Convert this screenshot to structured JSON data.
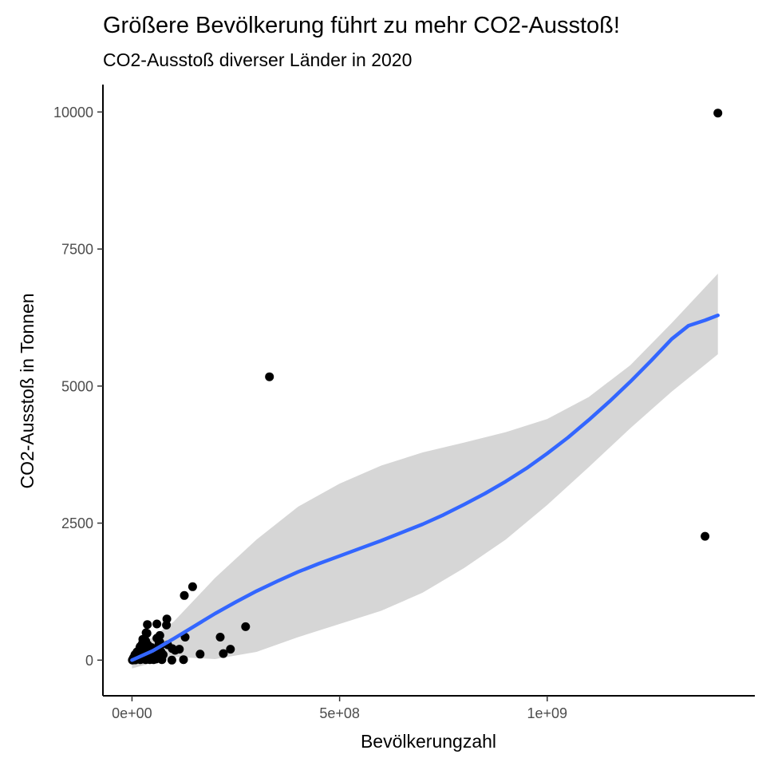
{
  "chart_data": {
    "type": "scatter",
    "title": "Größere Bevölkerung führt zu mehr CO2-Ausstoß!",
    "subtitle": "CO2-Ausstoß diverser Länder in 2020",
    "xlabel": "Bevölkerungzahl",
    "ylabel": "CO2-Ausstoß in Tonnen",
    "xlim": [
      -70000000,
      1500000000
    ],
    "ylim": [
      -650000,
      10500000
    ],
    "x_ticks": [
      0,
      500000000,
      1000000000
    ],
    "x_tick_labels": [
      "0e+00",
      "5e+08",
      "1e+09"
    ],
    "y_ticks": [
      0,
      2500000,
      5000000,
      7500000,
      10000000
    ],
    "y_tick_labels": [
      "0",
      "2500",
      "5000",
      "7500",
      "10000"
    ],
    "grid": false,
    "legend": "none",
    "colors": {
      "points": "#000000",
      "smooth_line": "#3366FF",
      "ribbon": "#d6d6d6"
    },
    "series": [
      {
        "type": "scatter",
        "points": [
          [
            1411000000,
            9980000
          ],
          [
            1380000000,
            2260000
          ],
          [
            331000000,
            5170000
          ],
          [
            146000000,
            1340000
          ],
          [
            126000000,
            1180000
          ],
          [
            273500000,
            610000
          ],
          [
            84000000,
            750000
          ],
          [
            83000000,
            640000
          ],
          [
            60000000,
            660000
          ],
          [
            37000000,
            650000
          ],
          [
            212500000,
            420000
          ],
          [
            220000000,
            120000
          ],
          [
            237000000,
            200000
          ],
          [
            164000000,
            110000
          ],
          [
            128000000,
            420000
          ],
          [
            114000000,
            200000
          ],
          [
            124000000,
            10000
          ],
          [
            96000000,
            0
          ],
          [
            104000000,
            180000
          ],
          [
            97000000,
            210000
          ],
          [
            86000000,
            280000
          ],
          [
            67000000,
            330000
          ],
          [
            69000000,
            270000
          ],
          [
            65000000,
            300000
          ],
          [
            60000000,
            400000
          ],
          [
            67000000,
            450000
          ],
          [
            47000000,
            230000
          ],
          [
            45000000,
            200000
          ],
          [
            54000000,
            180000
          ],
          [
            38000000,
            280000
          ],
          [
            36000000,
            490000
          ],
          [
            34000000,
            500000
          ],
          [
            33000000,
            350000
          ],
          [
            26000000,
            380000
          ],
          [
            25000000,
            300000
          ],
          [
            20000000,
            250000
          ],
          [
            19000000,
            230000
          ],
          [
            17000000,
            160000
          ],
          [
            11000000,
            100000
          ],
          [
            10000000,
            60000
          ],
          [
            9000000,
            50000
          ],
          [
            8000000,
            40000
          ],
          [
            6000000,
            30000
          ],
          [
            5000000,
            20000
          ],
          [
            4000000,
            15000
          ],
          [
            2000000,
            5000
          ],
          [
            1000000,
            2000
          ],
          [
            3000000,
            10000
          ],
          [
            15000000,
            70000
          ],
          [
            12000000,
            150000
          ],
          [
            18000000,
            90000
          ],
          [
            22000000,
            120000
          ],
          [
            28000000,
            60000
          ],
          [
            30000000,
            150000
          ],
          [
            31000000,
            20000
          ],
          [
            40000000,
            100000
          ],
          [
            42000000,
            160000
          ],
          [
            44000000,
            30000
          ],
          [
            50000000,
            110000
          ],
          [
            52000000,
            10000
          ],
          [
            55000000,
            60000
          ],
          [
            58000000,
            20000
          ],
          [
            63000000,
            80000
          ],
          [
            70000000,
            150000
          ],
          [
            72000000,
            10000
          ],
          [
            75000000,
            100000
          ],
          [
            20000000,
            10000
          ],
          [
            14000000,
            40000
          ],
          [
            7000000,
            100000
          ],
          [
            24000000,
            200000
          ],
          [
            27000000,
            20000
          ],
          [
            32000000,
            90000
          ],
          [
            35000000,
            40000
          ],
          [
            39000000,
            70000
          ],
          [
            43000000,
            10000
          ],
          [
            48000000,
            50000
          ],
          [
            16000000,
            20000
          ],
          [
            13000000,
            120000
          ],
          [
            9500000,
            80000
          ],
          [
            11500000,
            30000
          ],
          [
            21000000,
            50000
          ],
          [
            23000000,
            140000
          ],
          [
            26000000,
            90000
          ],
          [
            29000000,
            220000
          ],
          [
            33000000,
            10000
          ],
          [
            41000000,
            190000
          ],
          [
            46000000,
            60000
          ],
          [
            53000000,
            130000
          ],
          [
            57000000,
            40000
          ],
          [
            61000000,
            200000
          ],
          [
            5500000,
            60000
          ],
          [
            6500000,
            10000
          ],
          [
            7500000,
            30000
          ],
          [
            8500000,
            5000
          ],
          [
            3500000,
            40000
          ],
          [
            4500000,
            8000
          ]
        ]
      },
      {
        "type": "smooth_line",
        "points": [
          [
            0,
            0
          ],
          [
            50000000,
            170000
          ],
          [
            100000000,
            390000
          ],
          [
            150000000,
            620000
          ],
          [
            200000000,
            850000
          ],
          [
            250000000,
            1060000
          ],
          [
            300000000,
            1260000
          ],
          [
            350000000,
            1440000
          ],
          [
            400000000,
            1610000
          ],
          [
            450000000,
            1760000
          ],
          [
            500000000,
            1900000
          ],
          [
            550000000,
            2040000
          ],
          [
            600000000,
            2180000
          ],
          [
            650000000,
            2330000
          ],
          [
            700000000,
            2480000
          ],
          [
            750000000,
            2650000
          ],
          [
            800000000,
            2840000
          ],
          [
            850000000,
            3040000
          ],
          [
            900000000,
            3260000
          ],
          [
            950000000,
            3500000
          ],
          [
            1000000000,
            3770000
          ],
          [
            1050000000,
            4060000
          ],
          [
            1100000000,
            4380000
          ],
          [
            1150000000,
            4720000
          ],
          [
            1200000000,
            5080000
          ],
          [
            1250000000,
            5460000
          ],
          [
            1300000000,
            5860000
          ],
          [
            1340000000,
            6100000
          ],
          [
            1380000000,
            6200000
          ],
          [
            1411000000,
            6290000
          ]
        ]
      },
      {
        "type": "confidence_ribbon",
        "upper": [
          [
            0,
            150000
          ],
          [
            100000000,
            700000
          ],
          [
            200000000,
            1500000
          ],
          [
            300000000,
            2200000
          ],
          [
            400000000,
            2800000
          ],
          [
            500000000,
            3220000
          ],
          [
            600000000,
            3550000
          ],
          [
            700000000,
            3790000
          ],
          [
            800000000,
            3970000
          ],
          [
            900000000,
            4160000
          ],
          [
            1000000000,
            4400000
          ],
          [
            1100000000,
            4800000
          ],
          [
            1200000000,
            5380000
          ],
          [
            1300000000,
            6150000
          ],
          [
            1411000000,
            7050000
          ]
        ],
        "lower": [
          [
            0,
            -150000
          ],
          [
            100000000,
            60000
          ],
          [
            200000000,
            20000
          ],
          [
            300000000,
            150000
          ],
          [
            400000000,
            420000
          ],
          [
            500000000,
            660000
          ],
          [
            600000000,
            900000
          ],
          [
            700000000,
            1230000
          ],
          [
            800000000,
            1680000
          ],
          [
            900000000,
            2200000
          ],
          [
            1000000000,
            2830000
          ],
          [
            1100000000,
            3520000
          ],
          [
            1200000000,
            4230000
          ],
          [
            1300000000,
            4900000
          ],
          [
            1411000000,
            5580000
          ]
        ]
      }
    ]
  }
}
